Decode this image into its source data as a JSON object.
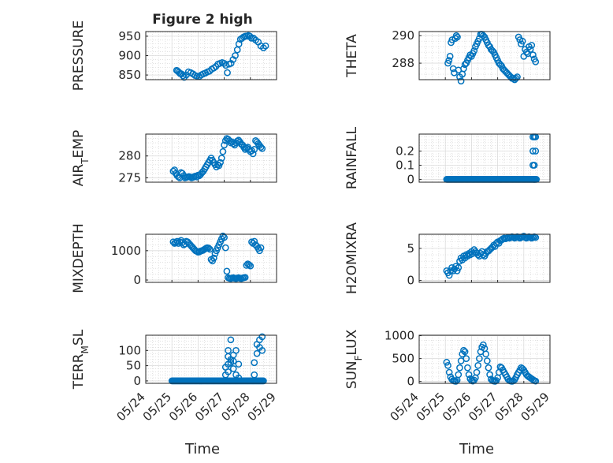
{
  "figure": {
    "title": "Figure 2 high",
    "xlabel": "Time",
    "x_tick_labels": [
      "05/24",
      "05/25",
      "05/26",
      "05/27",
      "05/28",
      "05/29"
    ],
    "marker_color": "#0072BD"
  },
  "chart_data": [
    {
      "type": "scatter",
      "ylabel": "PRESSURE",
      "ylim": [
        838,
        962
      ],
      "yticks": [
        850,
        900,
        950
      ],
      "grid": true,
      "x_units": "days since 05/24",
      "x": [
        1.18,
        1.22,
        1.27,
        1.31,
        1.36,
        1.42,
        1.47,
        1.55,
        1.63,
        1.72,
        1.8,
        1.88,
        1.96,
        2.04,
        2.12,
        2.2,
        2.28,
        2.36,
        2.44,
        2.52,
        2.6,
        2.68,
        2.76,
        2.84,
        2.92,
        3.0,
        3.06,
        3.12,
        3.18,
        3.26,
        3.34,
        3.42,
        3.5,
        3.56,
        3.62,
        3.68,
        3.74,
        3.8,
        3.86,
        3.92,
        3.98,
        4.04,
        4.12,
        4.2,
        4.3,
        4.4,
        4.5,
        4.58
      ],
      "values": [
        862,
        860,
        857,
        854,
        853,
        848,
        844,
        850,
        858,
        856,
        853,
        849,
        847,
        846,
        850,
        853,
        855,
        858,
        860,
        865,
        868,
        872,
        878,
        880,
        882,
        880,
        875,
        856,
        878,
        880,
        890,
        900,
        915,
        930,
        942,
        945,
        948,
        950,
        950,
        952,
        950,
        945,
        945,
        940,
        935,
        925,
        920,
        925
      ]
    },
    {
      "type": "scatter",
      "ylabel": "THETA",
      "ylim": [
        286.8,
        290.3
      ],
      "yticks": [
        288,
        290
      ],
      "grid": true,
      "x": [
        1.1,
        1.14,
        1.18,
        1.22,
        1.26,
        1.3,
        1.34,
        1.38,
        1.42,
        1.46,
        1.5,
        1.55,
        1.6,
        1.65,
        1.7,
        1.75,
        1.8,
        1.85,
        1.9,
        1.95,
        2.0,
        2.05,
        2.1,
        2.15,
        2.2,
        2.25,
        2.3,
        2.35,
        2.4,
        2.45,
        2.5,
        2.55,
        2.6,
        2.65,
        2.7,
        2.75,
        2.8,
        2.85,
        2.9,
        2.95,
        3.0,
        3.05,
        3.1,
        3.15,
        3.2,
        3.25,
        3.3,
        3.35,
        3.4,
        3.45,
        3.5,
        3.55,
        3.6,
        3.65,
        3.7,
        3.75,
        3.8,
        3.85,
        3.9,
        3.95,
        4.0,
        4.05,
        4.1,
        4.15,
        4.2,
        4.25,
        4.3,
        4.35,
        4.4,
        4.45
      ],
      "values": [
        288.0,
        288.2,
        288.5,
        289.5,
        289.7,
        287.6,
        287.3,
        289.8,
        290.0,
        289.9,
        287.5,
        287.0,
        286.7,
        287.2,
        287.6,
        287.9,
        288.0,
        288.2,
        288.4,
        288.6,
        288.5,
        288.7,
        288.9,
        289.2,
        289.4,
        289.6,
        289.8,
        290.1,
        290.1,
        290.0,
        289.9,
        289.7,
        289.5,
        289.3,
        289.2,
        289.0,
        288.9,
        288.8,
        288.6,
        288.4,
        288.2,
        288.0,
        287.9,
        287.8,
        287.6,
        287.5,
        287.4,
        287.3,
        287.2,
        287.1,
        287.0,
        286.9,
        286.9,
        286.8,
        286.9,
        287.0,
        289.9,
        289.7,
        289.4,
        289.6,
        288.5,
        289.0,
        288.8,
        288.7,
        289.2,
        289.0,
        289.3,
        288.6,
        288.3,
        288.1
      ]
    },
    {
      "type": "scatter",
      "ylabel": "AIR_TEMP",
      "ylim": [
        274,
        285
      ],
      "yticks": [
        275,
        280
      ],
      "grid": true,
      "x": [
        1.05,
        1.1,
        1.15,
        1.2,
        1.25,
        1.3,
        1.35,
        1.4,
        1.45,
        1.5,
        1.55,
        1.6,
        1.65,
        1.7,
        1.75,
        1.8,
        1.85,
        1.9,
        1.95,
        2.0,
        2.05,
        2.1,
        2.15,
        2.2,
        2.25,
        2.3,
        2.35,
        2.4,
        2.45,
        2.5,
        2.55,
        2.6,
        2.65,
        2.7,
        2.75,
        2.8,
        2.85,
        2.9,
        2.95,
        3.0,
        3.05,
        3.1,
        3.15,
        3.2,
        3.25,
        3.3,
        3.35,
        3.4,
        3.45,
        3.5,
        3.55,
        3.6,
        3.65,
        3.7,
        3.75,
        3.8,
        3.85,
        3.9,
        3.95,
        4.0,
        4.05,
        4.1,
        4.15,
        4.2,
        4.25,
        4.3,
        4.35,
        4.4,
        4.45
      ],
      "values": [
        276.5,
        276.8,
        276.0,
        275.5,
        275.2,
        275.0,
        276.2,
        276.0,
        275.5,
        275.0,
        275.1,
        275.2,
        275.3,
        275.2,
        275.0,
        275.1,
        275.3,
        275.4,
        275.2,
        275.6,
        275.5,
        275.8,
        276.2,
        276.5,
        277.0,
        277.5,
        278.0,
        278.5,
        279.0,
        279.5,
        279.0,
        278.5,
        278.0,
        277.5,
        278.0,
        277.8,
        278.5,
        279.5,
        281.0,
        282.5,
        283.5,
        284.0,
        283.8,
        283.5,
        283.0,
        283.2,
        282.8,
        282.5,
        283.0,
        283.4,
        283.6,
        283.2,
        282.7,
        282.5,
        282.0,
        281.5,
        281.8,
        282.0,
        281.5,
        281.0,
        281.2,
        280.5,
        281.5,
        283.5,
        283.2,
        282.8,
        282.4,
        282.0,
        281.7
      ]
    },
    {
      "type": "scatter",
      "ylabel": "RAINFALL",
      "ylim": [
        -0.02,
        0.32
      ],
      "yticks": [
        0,
        0.1,
        0.2
      ],
      "grid": true,
      "x_range": [
        1.05,
        4.5
      ],
      "baseline_value": 0,
      "spikes": [
        {
          "x": 4.35,
          "values": [
            0.1,
            0.2,
            0.3
          ]
        },
        {
          "x": 4.4,
          "values": [
            0.1,
            0.3,
            0.0
          ]
        },
        {
          "x": 4.45,
          "values": [
            0.2,
            0.3
          ]
        }
      ]
    },
    {
      "type": "scatter",
      "ylabel": "MIXDEPTH",
      "ylim": [
        -80,
        1560
      ],
      "yticks": [
        0,
        1000
      ],
      "grid": true,
      "x": [
        1.05,
        1.1,
        1.15,
        1.2,
        1.25,
        1.3,
        1.35,
        1.4,
        1.45,
        1.5,
        1.55,
        1.6,
        1.65,
        1.7,
        1.75,
        1.8,
        1.85,
        1.9,
        1.95,
        2.0,
        2.05,
        2.1,
        2.15,
        2.2,
        2.25,
        2.3,
        2.35,
        2.4,
        2.45,
        2.5,
        2.55,
        2.6,
        2.65,
        2.7,
        2.75,
        2.8,
        2.85,
        2.9,
        2.95,
        3.0,
        3.05,
        3.1,
        3.15,
        3.2,
        3.25,
        3.3,
        3.35,
        3.4,
        3.45,
        3.5,
        3.55,
        3.6,
        3.65,
        3.7,
        3.75,
        3.8,
        3.85,
        3.9,
        3.95,
        4.0,
        4.05,
        4.1,
        4.15,
        4.2,
        4.25,
        4.3,
        4.35,
        4.4
      ],
      "values": [
        1300,
        1250,
        1280,
        1320,
        1250,
        1300,
        1350,
        1280,
        1200,
        1230,
        1320,
        1300,
        1250,
        1200,
        1150,
        1100,
        1050,
        1000,
        980,
        950,
        960,
        990,
        1000,
        1020,
        1050,
        1080,
        1100,
        1090,
        1050,
        700,
        650,
        750,
        900,
        1000,
        1100,
        1200,
        1300,
        1400,
        1500,
        1450,
        1100,
        300,
        80,
        60,
        50,
        70,
        80,
        60,
        50,
        70,
        80,
        60,
        50,
        70,
        80,
        90,
        500,
        550,
        520,
        480,
        1300,
        1250,
        1320,
        1200,
        1150,
        1080,
        1000,
        1100
      ]
    },
    {
      "type": "scatter",
      "ylabel": "H2OMIXRA",
      "ylim": [
        -0.3,
        7.2
      ],
      "yticks": [
        0,
        5
      ],
      "grid": true,
      "x": [
        1.05,
        1.1,
        1.15,
        1.2,
        1.25,
        1.3,
        1.35,
        1.4,
        1.45,
        1.5,
        1.55,
        1.6,
        1.65,
        1.7,
        1.75,
        1.8,
        1.85,
        1.9,
        1.95,
        2.0,
        2.05,
        2.1,
        2.15,
        2.2,
        2.25,
        2.3,
        2.35,
        2.4,
        2.45,
        2.5,
        2.55,
        2.6,
        2.65,
        2.7,
        2.75,
        2.8,
        2.85,
        2.9,
        2.95,
        3.0,
        3.05,
        3.1,
        3.15,
        3.2,
        3.25,
        3.3,
        3.35,
        3.4,
        3.45,
        3.5,
        3.55,
        3.6,
        3.65,
        3.7,
        3.75,
        3.8,
        3.85,
        3.9,
        3.95,
        4.0,
        4.05,
        4.1,
        4.15,
        4.2,
        4.25,
        4.3,
        4.35,
        4.4,
        4.45
      ],
      "values": [
        1.5,
        1.2,
        0.8,
        1.5,
        2.0,
        1.5,
        1.8,
        2.2,
        1.5,
        2.0,
        3.0,
        3.5,
        3.2,
        3.8,
        3.5,
        4.0,
        3.8,
        4.2,
        4.0,
        4.5,
        4.2,
        4.8,
        4.5,
        4.3,
        4.0,
        3.8,
        4.2,
        4.5,
        4.0,
        3.8,
        4.2,
        4.5,
        4.6,
        4.8,
        5.0,
        5.2,
        5.5,
        5.3,
        5.8,
        6.0,
        5.8,
        6.2,
        6.3,
        6.5,
        6.6,
        6.5,
        6.6,
        6.7,
        6.6,
        6.7,
        6.8,
        6.7,
        6.6,
        6.7,
        6.8,
        6.7,
        6.6,
        6.7,
        6.8,
        6.9,
        6.7,
        6.6,
        6.7,
        6.8,
        6.7,
        6.6,
        6.7,
        6.8,
        6.7
      ]
    },
    {
      "type": "scatter",
      "ylabel": "TERR_MSL",
      "ylim": [
        -8,
        150
      ],
      "yticks": [
        0,
        50,
        100
      ],
      "grid": true,
      "baseline_value": 0,
      "x_range": [
        1.0,
        4.5
      ],
      "spikes": [
        {
          "x": 3.05,
          "values": [
            20,
            45
          ]
        },
        {
          "x": 3.15,
          "values": [
            55,
            80,
            100,
            30
          ]
        },
        {
          "x": 3.25,
          "values": [
            70,
            135,
            60
          ]
        },
        {
          "x": 3.35,
          "values": [
            85,
            65,
            40
          ]
        },
        {
          "x": 3.45,
          "values": [
            100,
            20
          ]
        },
        {
          "x": 3.55,
          "values": [
            55,
            10
          ]
        },
        {
          "x": 4.15,
          "values": [
            20,
            60
          ]
        },
        {
          "x": 4.25,
          "values": [
            90,
            120
          ]
        },
        {
          "x": 4.35,
          "values": [
            110,
            135
          ]
        },
        {
          "x": 4.45,
          "values": [
            145,
            100
          ]
        }
      ]
    },
    {
      "type": "scatter",
      "ylabel": "SUN_FLUX",
      "ylim": [
        -40,
        1010
      ],
      "yticks": [
        0,
        500,
        1000
      ],
      "grid": true,
      "x": [
        1.05,
        1.1,
        1.15,
        1.2,
        1.25,
        1.3,
        1.35,
        1.4,
        1.45,
        1.5,
        1.55,
        1.6,
        1.65,
        1.7,
        1.75,
        1.8,
        1.85,
        1.9,
        1.95,
        2.0,
        2.05,
        2.1,
        2.15,
        2.2,
        2.25,
        2.3,
        2.35,
        2.4,
        2.45,
        2.5,
        2.55,
        2.6,
        2.65,
        2.7,
        2.75,
        2.8,
        2.85,
        2.9,
        2.95,
        3.0,
        3.05,
        3.1,
        3.15,
        3.2,
        3.25,
        3.3,
        3.35,
        3.4,
        3.45,
        3.5,
        3.55,
        3.6,
        3.65,
        3.7,
        3.75,
        3.8,
        3.85,
        3.9,
        3.95,
        4.0,
        4.05,
        4.1,
        4.15,
        4.2,
        4.25,
        4.3,
        4.35,
        4.4,
        4.45
      ],
      "values": [
        420,
        350,
        200,
        100,
        50,
        20,
        10,
        5,
        30,
        150,
        300,
        450,
        600,
        680,
        650,
        500,
        300,
        150,
        60,
        20,
        10,
        30,
        80,
        200,
        350,
        500,
        650,
        750,
        800,
        720,
        600,
        450,
        300,
        150,
        50,
        20,
        10,
        5,
        20,
        80,
        200,
        320,
        300,
        250,
        200,
        150,
        100,
        50,
        20,
        10,
        5,
        15,
        40,
        90,
        150,
        200,
        250,
        300,
        280,
        250,
        200,
        150,
        120,
        100,
        80,
        60,
        40,
        20,
        10
      ]
    }
  ]
}
